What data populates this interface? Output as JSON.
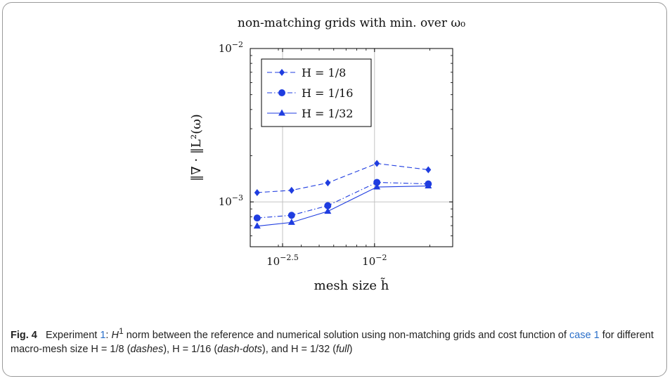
{
  "chart_data": {
    "type": "line",
    "title": "non-matching grids with min. over ω₀",
    "xlabel": "mesh size h̃",
    "ylabel": "‖∇ · ‖L²(ω)",
    "x_scale": "log",
    "y_scale": "log",
    "x_ticks": [
      "10^-2.5",
      "10^-2"
    ],
    "y_ticks": [
      "10^-3",
      "10^-2"
    ],
    "xlim": [
      0.00211,
      0.0266
    ],
    "ylim": [
      0.00051,
      0.01
    ],
    "grid": true,
    "legend_position": "top-left",
    "x": [
      0.0023,
      0.00354,
      0.00557,
      0.0103,
      0.0196
    ],
    "series": [
      {
        "name": "H = 1/8",
        "values": [
          0.00115,
          0.00119,
          0.00133,
          0.00178,
          0.00162
        ],
        "style": "dashed",
        "marker": "diamond",
        "color": "#1f3de0"
      },
      {
        "name": "H = 1/16",
        "values": [
          0.000785,
          0.000818,
          0.000945,
          0.00134,
          0.00131
        ],
        "style": "dashdot",
        "marker": "circle",
        "color": "#1f3de0"
      },
      {
        "name": "H = 1/32",
        "values": [
          0.000695,
          0.000735,
          0.000868,
          0.00125,
          0.00127
        ],
        "style": "solid",
        "marker": "triangle",
        "color": "#1f3de0"
      }
    ]
  },
  "caption": {
    "label": "Fig. 4",
    "t1": "Experiment ",
    "ref1": "1",
    "t2": ": ",
    "h_sym": "H",
    "h_sup": "1",
    "t3": " norm between the reference and numerical solution using non-matching grids and cost function of ",
    "ref2": "case 1",
    "t4": " for different macro-mesh size H = 1/8 (",
    "s1": "dashes",
    "t5": "), H = 1/16 (",
    "s2": "dash-dots",
    "t6": "), and H = 1/32 (",
    "s3": "full",
    "t7": ")"
  }
}
